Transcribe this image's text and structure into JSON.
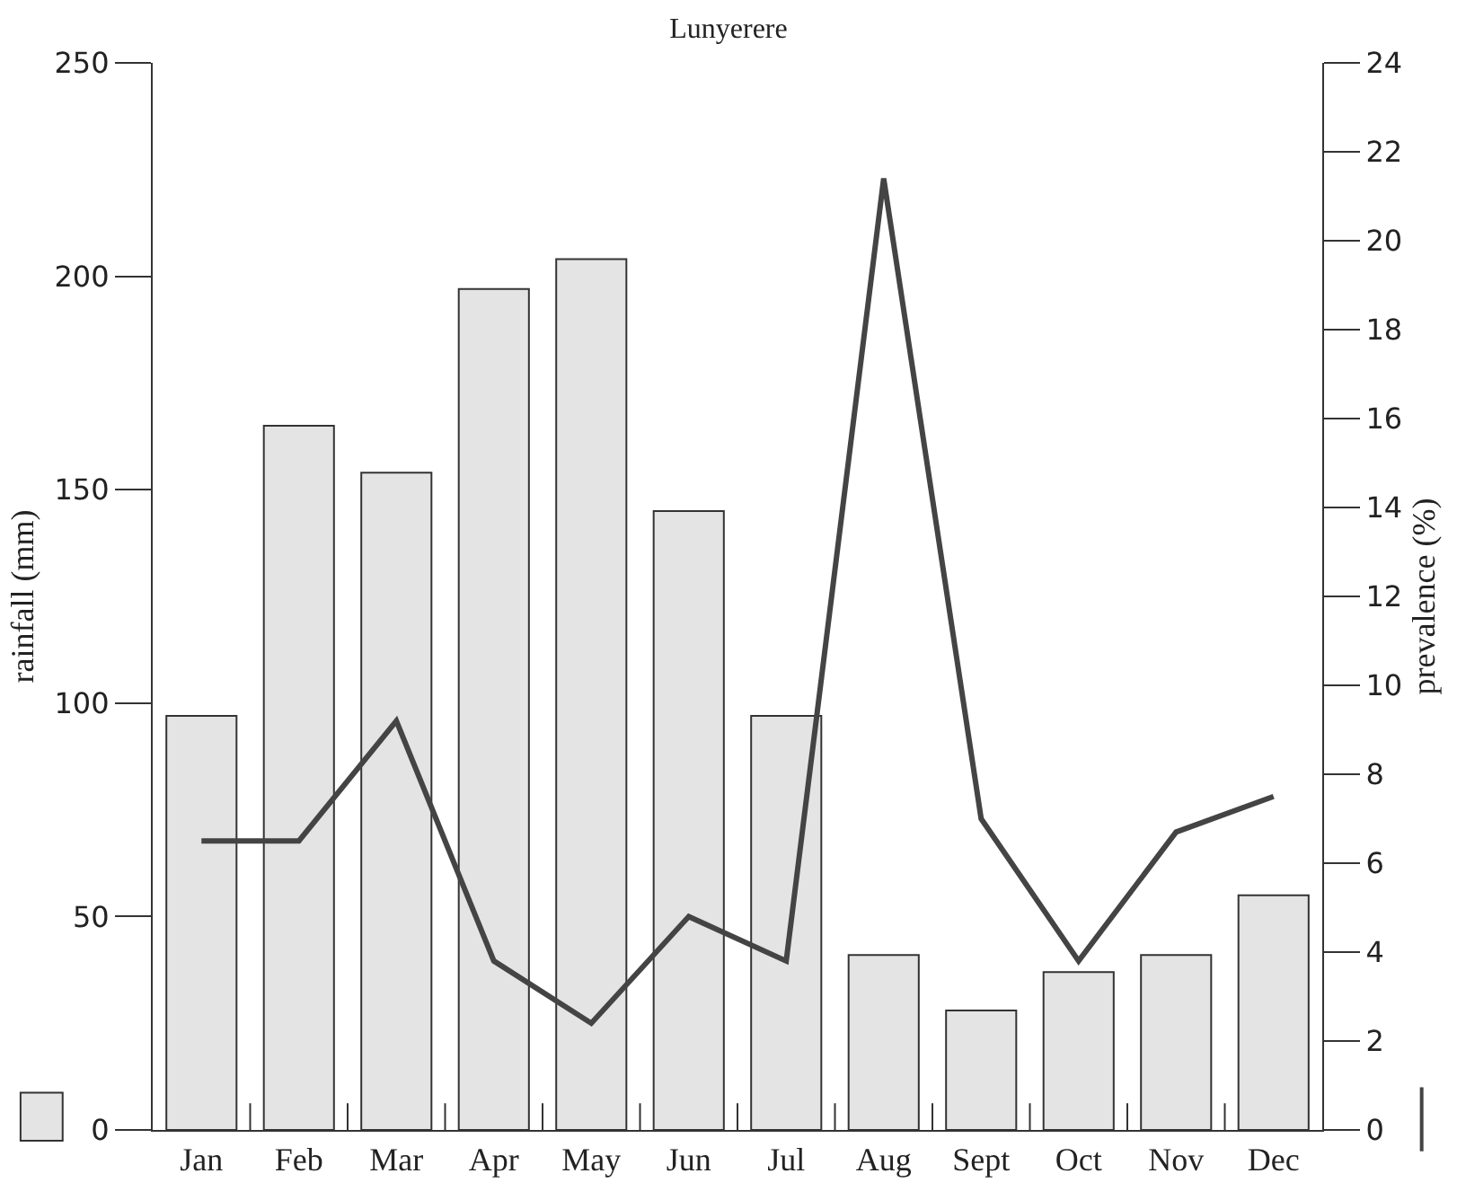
{
  "chart_data": {
    "type": "bar",
    "title": "Lunyerere",
    "ylabel": "rainfall (mm)",
    "y2label": "prevalence (%)",
    "categories": [
      "Jan",
      "Feb",
      "Mar",
      "Apr",
      "May",
      "Jun",
      "Jul",
      "Aug",
      "Sept",
      "Oct",
      "Nov",
      "Dec"
    ],
    "series": [
      {
        "color": "#e4e4e4",
        "values": [
          97,
          165,
          154,
          197,
          204,
          145,
          97,
          41,
          28,
          37,
          41,
          55
        ]
      },
      {
        "type": "line",
        "axis": "y2",
        "color": "#444444",
        "values": [
          6.5,
          6.5,
          9.2,
          3.8,
          2.4,
          4.8,
          3.8,
          21.4,
          7.0,
          3.8,
          6.7,
          7.5
        ]
      }
    ],
    "ylim": [
      0,
      250
    ],
    "yticks": [
      0,
      50,
      100,
      150,
      200,
      250
    ],
    "y2lim": [
      0,
      24
    ],
    "y2ticks": [
      0,
      2,
      4,
      6,
      8,
      10,
      12,
      14,
      16,
      18,
      20,
      22,
      24
    ],
    "marker": "none",
    "line_style": "solid"
  }
}
